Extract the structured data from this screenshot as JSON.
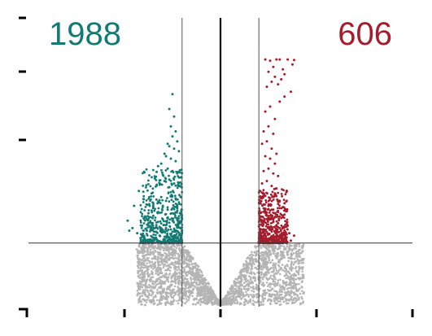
{
  "chart_data": {
    "type": "scatter",
    "title": "",
    "xlabel": "",
    "ylabel": "",
    "xlim": [
      -6,
      6
    ],
    "ylim": [
      0,
      10
    ],
    "fold_change_thresholds": [
      -1.2,
      1.2
    ],
    "significance_threshold": 2.5,
    "down_count": "1988",
    "up_count": "606",
    "legend": "none",
    "grid": false,
    "colors": {
      "down": "#117a73",
      "up": "#a51c2c",
      "not_significant": "#b4b4b4",
      "threshold_line": "#555555",
      "zero_line": "#000000"
    },
    "series": [
      {
        "group": "down",
        "x": [
          -1.3,
          -1.45,
          -1.6,
          -1.75,
          -1.9,
          -2.05,
          -2.2,
          -2.35,
          -2.5,
          -1.4,
          -1.55,
          -1.7,
          -1.85,
          -2.0,
          -2.15,
          -2.3,
          -2.45,
          -1.5,
          -1.65,
          -1.8,
          -1.95,
          -2.1,
          -2.25,
          -2.4,
          -1.35,
          -1.5,
          -1.65,
          -1.8,
          -1.95,
          -2.1,
          -2.25,
          -1.4,
          -1.55,
          -1.7,
          -1.85,
          -2.0,
          -2.15,
          -1.3,
          -1.45,
          -1.6,
          -1.75,
          -1.9,
          -2.05,
          -1.35,
          -1.5,
          -1.65,
          -1.8,
          -1.95,
          -1.4,
          -1.55,
          -1.7,
          -1.85,
          -1.3,
          -1.45,
          -1.6,
          -1.75,
          -1.35,
          -1.5,
          -1.65,
          -1.4,
          -1.55,
          -1.45,
          -2.6,
          -2.75,
          -2.9,
          -2.7,
          -2.55,
          -2.85,
          -1.6,
          -1.5
        ],
        "y": [
          2.6,
          2.65,
          2.7,
          2.75,
          2.8,
          2.7,
          2.65,
          2.6,
          2.7,
          3.0,
          3.05,
          3.1,
          3.0,
          2.95,
          3.1,
          3.0,
          3.2,
          3.4,
          3.5,
          3.45,
          3.35,
          3.6,
          3.3,
          3.5,
          3.8,
          3.9,
          3.85,
          4.0,
          3.75,
          3.95,
          3.7,
          4.3,
          4.4,
          4.2,
          4.35,
          4.25,
          4.5,
          4.8,
          4.9,
          4.75,
          5.0,
          4.85,
          5.1,
          5.3,
          5.4,
          5.5,
          5.25,
          5.6,
          5.8,
          5.9,
          6.0,
          5.7,
          6.2,
          6.3,
          6.4,
          6.1,
          6.6,
          6.8,
          6.5,
          7.0,
          7.2,
          7.6,
          2.9,
          3.1,
          3.4,
          4.0,
          4.6,
          3.0,
          7.9,
          8.5
        ]
      },
      {
        "group": "up",
        "x": [
          1.3,
          1.45,
          1.6,
          1.75,
          1.9,
          2.05,
          2.2,
          1.4,
          1.55,
          1.7,
          1.85,
          2.0,
          2.15,
          2.3,
          1.3,
          1.5,
          1.65,
          1.8,
          1.95,
          2.1,
          1.35,
          1.5,
          1.65,
          1.8,
          1.95,
          1.4,
          1.55,
          1.7,
          1.85,
          2.0,
          1.3,
          1.45,
          1.6,
          1.75,
          1.35,
          1.5,
          1.65,
          1.8,
          1.4,
          1.55,
          1.7,
          1.3,
          1.45,
          1.6,
          1.75,
          1.35,
          1.5,
          1.65,
          1.4,
          1.55,
          1.7,
          1.85,
          2.0,
          2.2,
          1.45,
          1.6,
          1.8,
          1.9,
          1.5,
          1.7,
          1.65,
          1.95,
          1.75,
          1.55,
          1.85,
          2.1,
          2.3,
          1.4,
          2.25,
          2.0
        ],
        "y": [
          2.6,
          2.65,
          2.7,
          2.75,
          2.7,
          2.65,
          2.6,
          3.0,
          3.05,
          2.95,
          3.1,
          3.0,
          2.9,
          2.8,
          3.4,
          3.5,
          3.45,
          3.3,
          3.6,
          3.2,
          3.9,
          4.0,
          3.85,
          3.75,
          3.95,
          4.4,
          4.3,
          4.5,
          4.2,
          4.1,
          4.9,
          5.0,
          4.8,
          4.7,
          5.4,
          5.5,
          5.3,
          5.2,
          6.0,
          5.9,
          5.7,
          6.5,
          6.6,
          6.3,
          6.1,
          7.0,
          7.2,
          6.9,
          7.8,
          8.0,
          7.5,
          8.2,
          8.4,
          8.6,
          8.8,
          9.0,
          8.9,
          9.1,
          9.4,
          9.2,
          9.6,
          9.5,
          9.9,
          9.85,
          9.9,
          9.9,
          9.88,
          9.9,
          9.7,
          9.3
        ]
      }
    ]
  }
}
